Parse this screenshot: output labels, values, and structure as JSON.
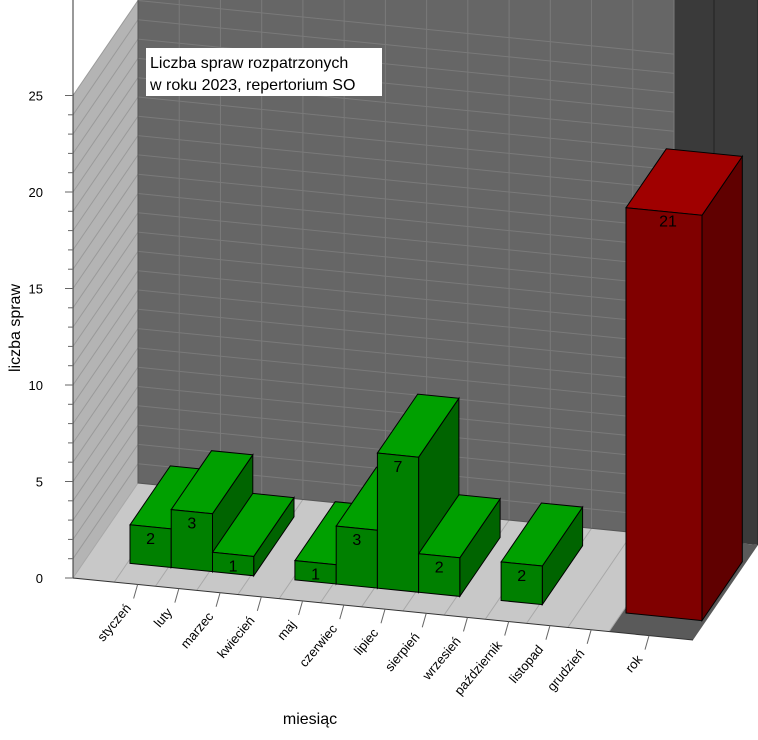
{
  "chart_data": {
    "type": "bar",
    "title_lines": [
      "Liczba spraw rozpatrzonych",
      "w roku 2023, repertorium SO"
    ],
    "xlabel": "miesiąc",
    "ylabel": "liczba spraw",
    "ylim": [
      0,
      25
    ],
    "yticks": [
      "0",
      "5",
      "10",
      "15",
      "20",
      "25"
    ],
    "categories": [
      "styczeń",
      "luty",
      "marzec",
      "kwiecień",
      "maj",
      "czerwiec",
      "lipiec",
      "sierpień",
      "wrzesień",
      "październik",
      "listopad",
      "grudzień"
    ],
    "values": [
      2,
      3,
      1,
      null,
      1,
      3,
      7,
      2,
      null,
      2,
      null,
      null
    ],
    "total_category": "rok",
    "total_value": 21,
    "colors": {
      "bar_front": "#008000",
      "bar_top": "#00a000",
      "bar_side": "#006400",
      "total_front": "#800000",
      "total_top": "#a00000",
      "total_side": "#600000",
      "back_wall": "#666666",
      "side_wall": "#b4b4b4",
      "floor": "#c8c8c8",
      "total_wall": "#3a3a3a",
      "total_floor": "#5a5a5a"
    }
  }
}
